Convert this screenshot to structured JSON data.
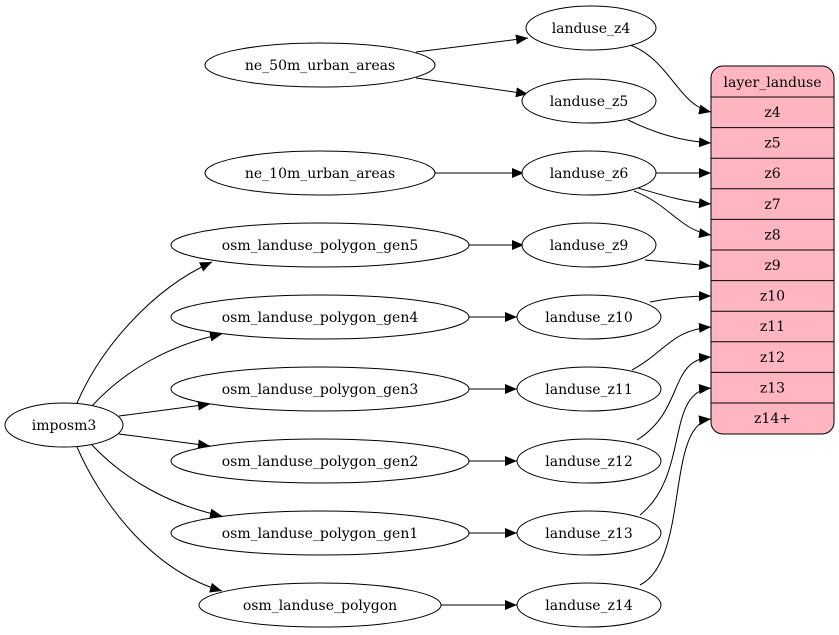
{
  "nodes": {
    "landuse_z4": "landuse_z4",
    "ne_50m_urban_areas": "ne_50m_urban_areas",
    "landuse_z5": "landuse_z5",
    "ne_10m_urban_areas": "ne_10m_urban_areas",
    "landuse_z6": "landuse_z6",
    "gen5": "osm_landuse_polygon_gen5",
    "landuse_z9": "landuse_z9",
    "gen4": "osm_landuse_polygon_gen4",
    "landuse_z10": "landuse_z10",
    "gen3": "osm_landuse_polygon_gen3",
    "landuse_z11": "landuse_z11",
    "imposm3": "imposm3",
    "gen2": "osm_landuse_polygon_gen2",
    "landuse_z12": "landuse_z12",
    "gen1": "osm_landuse_polygon_gen1",
    "landuse_z13": "landuse_z13",
    "osm_landuse_polygon": "osm_landuse_polygon",
    "landuse_z14": "landuse_z14"
  },
  "layer": {
    "title": "layer_landuse",
    "fill_color": "#ffb6c1",
    "fields": [
      "z4",
      "z5",
      "z6",
      "z7",
      "z8",
      "z9",
      "z10",
      "z11",
      "z12",
      "z13",
      "z14+"
    ]
  },
  "edges": [
    [
      "ne_50m_urban_areas",
      "landuse_z4"
    ],
    [
      "ne_50m_urban_areas",
      "landuse_z5"
    ],
    [
      "ne_10m_urban_areas",
      "landuse_z6"
    ],
    [
      "imposm3",
      "osm_landuse_polygon_gen5"
    ],
    [
      "imposm3",
      "osm_landuse_polygon_gen4"
    ],
    [
      "imposm3",
      "osm_landuse_polygon_gen3"
    ],
    [
      "imposm3",
      "osm_landuse_polygon_gen2"
    ],
    [
      "imposm3",
      "osm_landuse_polygon_gen1"
    ],
    [
      "imposm3",
      "osm_landuse_polygon"
    ],
    [
      "osm_landuse_polygon_gen5",
      "landuse_z9"
    ],
    [
      "osm_landuse_polygon_gen4",
      "landuse_z10"
    ],
    [
      "osm_landuse_polygon_gen3",
      "landuse_z11"
    ],
    [
      "osm_landuse_polygon_gen2",
      "landuse_z12"
    ],
    [
      "osm_landuse_polygon_gen1",
      "landuse_z13"
    ],
    [
      "osm_landuse_polygon",
      "landuse_z14"
    ],
    [
      "landuse_z4",
      "layer_landuse:z4"
    ],
    [
      "landuse_z5",
      "layer_landuse:z5"
    ],
    [
      "landuse_z6",
      "layer_landuse:z6"
    ],
    [
      "landuse_z6",
      "layer_landuse:z7"
    ],
    [
      "landuse_z6",
      "layer_landuse:z8"
    ],
    [
      "landuse_z9",
      "layer_landuse:z9"
    ],
    [
      "landuse_z10",
      "layer_landuse:z10"
    ],
    [
      "landuse_z11",
      "layer_landuse:z11"
    ],
    [
      "landuse_z12",
      "layer_landuse:z12"
    ],
    [
      "landuse_z13",
      "layer_landuse:z13"
    ],
    [
      "landuse_z14",
      "layer_landuse:z14+"
    ]
  ]
}
